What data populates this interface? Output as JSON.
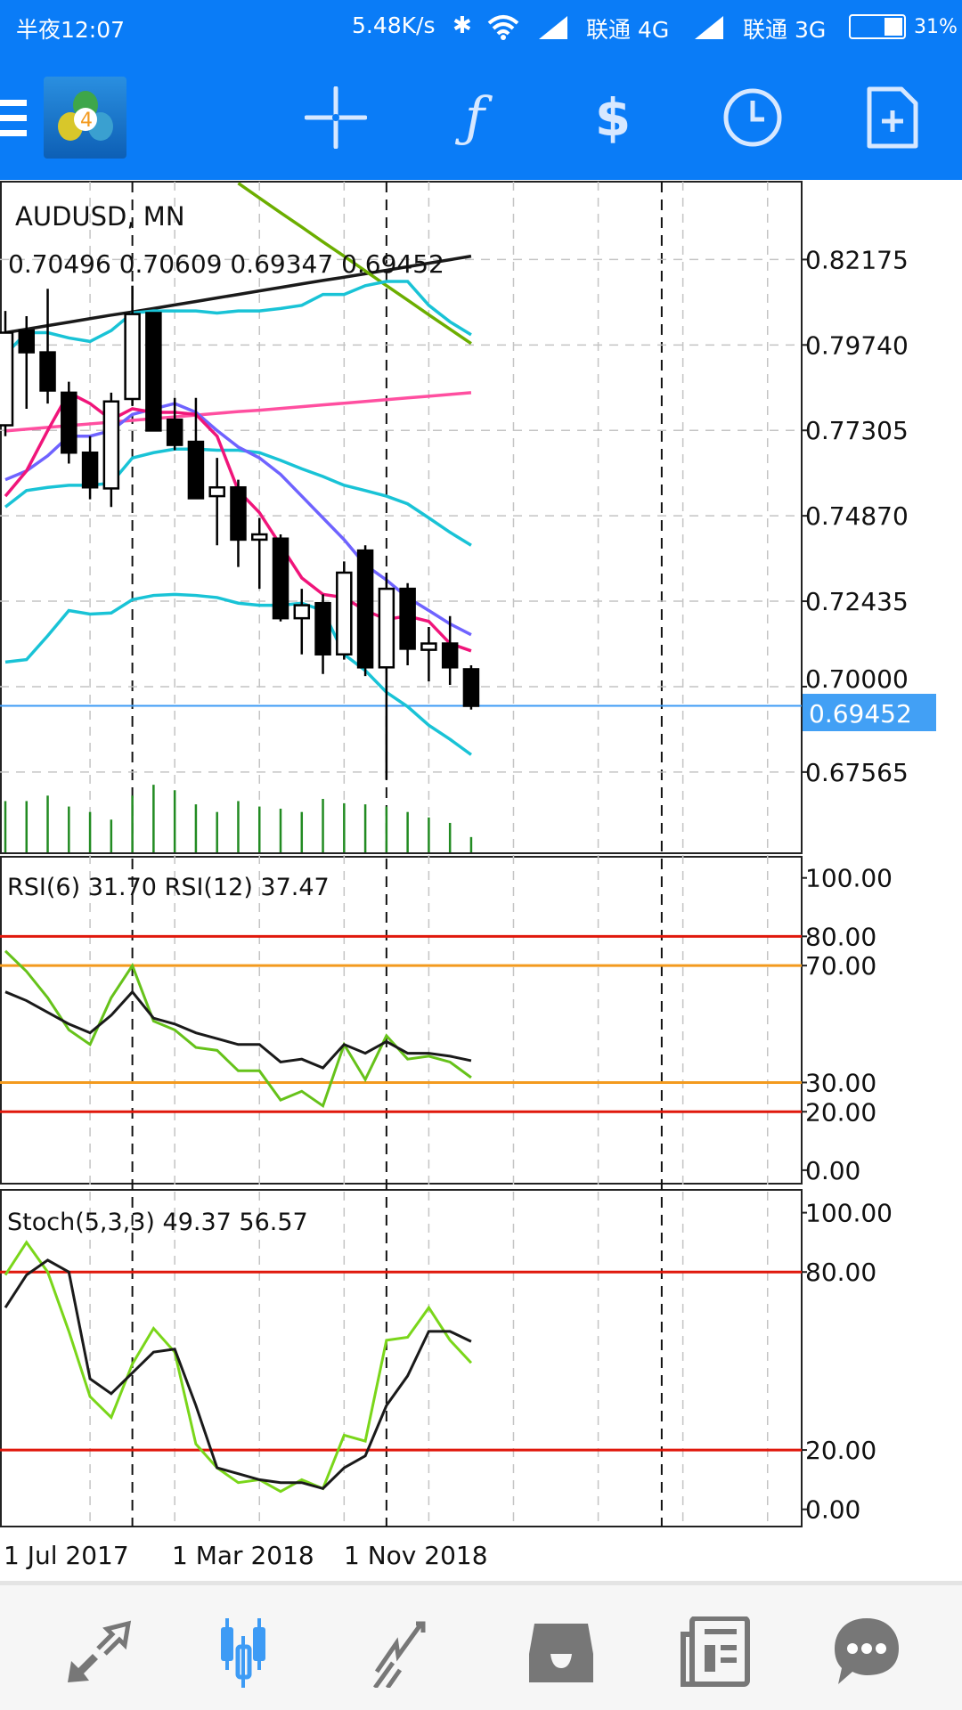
{
  "status_bar": {
    "time": "半夜12:07",
    "speed": "5.48K/s",
    "carrier1": "联通 4G",
    "carrier2": "联通 3G",
    "battery": "31%",
    "battery_level": 0.31
  },
  "toolbar": {
    "icons": [
      "menu-icon",
      "mt4-logo",
      "crosshair-icon",
      "indicators-icon",
      "trade-icon",
      "timeframe-icon",
      "new-order-icon"
    ]
  },
  "colors": {
    "accent": "#0a7cf7",
    "bullet_price": "#42a0f5",
    "volume": "#228b22",
    "level_red": "#e0180c",
    "level_orange": "#f39a1e",
    "active_nav": "#3d9bf5"
  },
  "chart_data": [
    {
      "type": "candlestick",
      "symbol_title": "AUDUSD, MN",
      "ohlc_readout": "0.70496 0.70609 0.69347 0.69452",
      "current_price": "0.69452",
      "y_ticks": [
        "0.82175",
        "0.79740",
        "0.77305",
        "0.74870",
        "0.72435",
        "0.70000",
        "0.67565"
      ],
      "x_labels": [
        "1 Jul 2017",
        "1 Mar 2018",
        "1 Nov 2018"
      ],
      "candles": [
        [
          0.7745,
          0.8071,
          0.7714,
          0.8009
        ],
        [
          0.8015,
          0.8056,
          0.7792,
          0.7953
        ],
        [
          0.7953,
          0.8134,
          0.7807,
          0.7844
        ],
        [
          0.7838,
          0.7869,
          0.7636,
          0.7667
        ],
        [
          0.7667,
          0.7714,
          0.7534,
          0.7568
        ],
        [
          0.7565,
          0.7838,
          0.7512,
          0.7813
        ],
        [
          0.782,
          0.8143,
          0.7801,
          0.8062
        ],
        [
          0.8065,
          0.8065,
          0.773,
          0.773
        ],
        [
          0.7761,
          0.7823,
          0.7674,
          0.7689
        ],
        [
          0.7698,
          0.7823,
          0.7537,
          0.7537
        ],
        [
          0.7543,
          0.7652,
          0.7403,
          0.7568
        ],
        [
          0.7568,
          0.759,
          0.7341,
          0.7419
        ],
        [
          0.7419,
          0.7481,
          0.7279,
          0.7434
        ],
        [
          0.7422,
          0.7434,
          0.7186,
          0.7195
        ],
        [
          0.7195,
          0.7279,
          0.7092,
          0.7232
        ],
        [
          0.7238,
          0.7263,
          0.7036,
          0.7092
        ],
        [
          0.7092,
          0.7357,
          0.7077,
          0.7325
        ],
        [
          0.7388,
          0.7403,
          0.703,
          0.7055
        ],
        [
          0.7055,
          0.7325,
          0.6735,
          0.7279
        ],
        [
          0.7279,
          0.7295,
          0.7061,
          0.7108
        ],
        [
          0.7105,
          0.717,
          0.7015,
          0.7123
        ],
        [
          0.7123,
          0.7201,
          0.7005,
          0.7055
        ],
        [
          0.70496,
          0.70609,
          0.69347,
          0.69452
        ]
      ],
      "volume_relative": [
        47,
        47,
        52,
        42,
        37,
        30,
        52,
        62,
        57,
        44,
        37,
        47,
        42,
        40,
        37,
        49,
        45,
        44,
        42,
        37,
        32,
        27,
        14
      ],
      "overlays": [
        {
          "color": "#1a1a1a",
          "values": [
            0.8009,
            0.8019,
            0.8029,
            0.8039,
            0.8049,
            0.8059,
            0.8068,
            0.8078,
            0.8088,
            0.8098,
            0.8108,
            0.8118,
            0.8128,
            0.8138,
            0.8148,
            0.8158,
            0.8167,
            0.8177,
            0.8187,
            0.8197,
            0.8207,
            0.8217,
            0.8227
          ]
        },
        {
          "color": "#ff4fa0",
          "values": [
            0.7729,
            0.7734,
            0.7739,
            0.7744,
            0.7749,
            0.7754,
            0.7759,
            0.7764,
            0.7769,
            0.7774,
            0.7779,
            0.7784,
            0.7788,
            0.7793,
            0.7798,
            0.7803,
            0.7808,
            0.7813,
            0.7818,
            0.7823,
            0.7828,
            0.7833,
            0.7838
          ]
        },
        {
          "color": "#6cae00",
          "values": [
            null,
            null,
            null,
            null,
            null,
            null,
            null,
            null,
            null,
            null,
            null,
            0.8435,
            0.8393,
            0.8351,
            0.831,
            0.8268,
            0.8227,
            0.8185,
            0.8143,
            0.8102,
            0.806,
            0.8019,
            0.7978
          ]
        },
        {
          "color": "#19c3d6",
          "values": [
            0.7947,
            0.8009,
            0.8009,
            0.7994,
            0.7984,
            0.8015,
            0.8065,
            0.8071,
            0.8071,
            0.8071,
            0.8065,
            0.8071,
            0.8071,
            0.8078,
            0.8087,
            0.8118,
            0.8118,
            0.8143,
            0.8155,
            0.8155,
            0.8087,
            0.804,
            0.8003
          ]
        },
        {
          "color": "#19c3d6",
          "values": [
            0.7512,
            0.7559,
            0.7568,
            0.7574,
            0.7574,
            0.758,
            0.7652,
            0.7667,
            0.7677,
            0.7677,
            0.7674,
            0.7674,
            0.7667,
            0.7645,
            0.7621,
            0.7599,
            0.7574,
            0.7559,
            0.7543,
            0.7521,
            0.7481,
            0.744,
            0.7403
          ]
        },
        {
          "color": "#19c3d6",
          "values": [
            0.707,
            0.7077,
            0.7145,
            0.7217,
            0.7207,
            0.721,
            0.7248,
            0.726,
            0.7263,
            0.726,
            0.7254,
            0.7238,
            0.7232,
            0.7232,
            0.7238,
            0.7217,
            0.7092,
            0.7046,
            0.6984,
            0.6943,
            0.689,
            0.685,
            0.6806
          ]
        },
        {
          "color": "#6f63ff",
          "values": [
            0.759,
            0.7615,
            0.7658,
            0.7714,
            0.7714,
            0.773,
            0.7776,
            0.7792,
            0.7807,
            0.7782,
            0.773,
            0.7683,
            0.7652,
            0.7605,
            0.7543,
            0.7481,
            0.7419,
            0.7347,
            0.7304,
            0.7254,
            0.7217,
            0.7179,
            0.7148
          ]
        },
        {
          "color": "#f0157a",
          "values": [
            0.7543,
            0.7615,
            0.773,
            0.7838,
            0.7807,
            0.7761,
            0.7792,
            0.7782,
            0.7782,
            0.7776,
            0.7714,
            0.7559,
            0.7496,
            0.7403,
            0.731,
            0.7263,
            0.7254,
            0.7217,
            0.7192,
            0.7201,
            0.7186,
            0.7123,
            0.7102
          ]
        }
      ]
    },
    {
      "type": "line",
      "label": "RSI(6) 31.70 RSI(12) 37.47",
      "y_ticks": [
        "100.00",
        "80.00",
        "70.00",
        "30.00",
        "20.00",
        "0.00"
      ],
      "levels": [
        {
          "value": 80,
          "color": "#e0180c"
        },
        {
          "value": 70,
          "color": "#f39a1e"
        },
        {
          "value": 30,
          "color": "#f39a1e"
        },
        {
          "value": 20,
          "color": "#e0180c"
        }
      ],
      "series": [
        {
          "color": "#66c21a",
          "values": [
            75,
            68,
            59,
            48,
            43,
            59,
            70,
            51,
            48,
            42,
            41,
            34,
            34,
            24,
            27,
            22,
            43,
            31,
            46,
            38,
            39,
            37,
            31.7
          ]
        },
        {
          "color": "#1a1a1a",
          "values": [
            61,
            58,
            54,
            50,
            47,
            53,
            61,
            52,
            50,
            47,
            45,
            43,
            43,
            37,
            38,
            35,
            43,
            40,
            44,
            40,
            40,
            39,
            37.47
          ]
        }
      ]
    },
    {
      "type": "line",
      "label": "Stoch(5,3,3) 49.37 56.57",
      "y_ticks": [
        "100.00",
        "80.00",
        "20.00",
        "0.00"
      ],
      "levels": [
        {
          "value": 80,
          "color": "#e0180c"
        },
        {
          "value": 20,
          "color": "#e0180c"
        }
      ],
      "series": [
        {
          "color": "#7ad61a",
          "values": [
            79,
            90,
            80,
            60,
            38,
            31,
            49,
            61,
            53,
            22,
            14,
            9,
            10,
            6,
            10,
            7,
            25,
            23,
            57,
            58,
            68,
            57,
            49.37
          ]
        },
        {
          "color": "#1a1a1a",
          "values": [
            68,
            79,
            84,
            80,
            44,
            39,
            46,
            53,
            54,
            35,
            14,
            12,
            10,
            9,
            9,
            7,
            14,
            18,
            35,
            45,
            60,
            60,
            56.57
          ]
        }
      ]
    }
  ],
  "bottom_nav": {
    "items": [
      "quotes-icon",
      "charts-icon",
      "trade-icon",
      "history-icon",
      "news-icon",
      "messages-icon"
    ],
    "active": 1
  }
}
